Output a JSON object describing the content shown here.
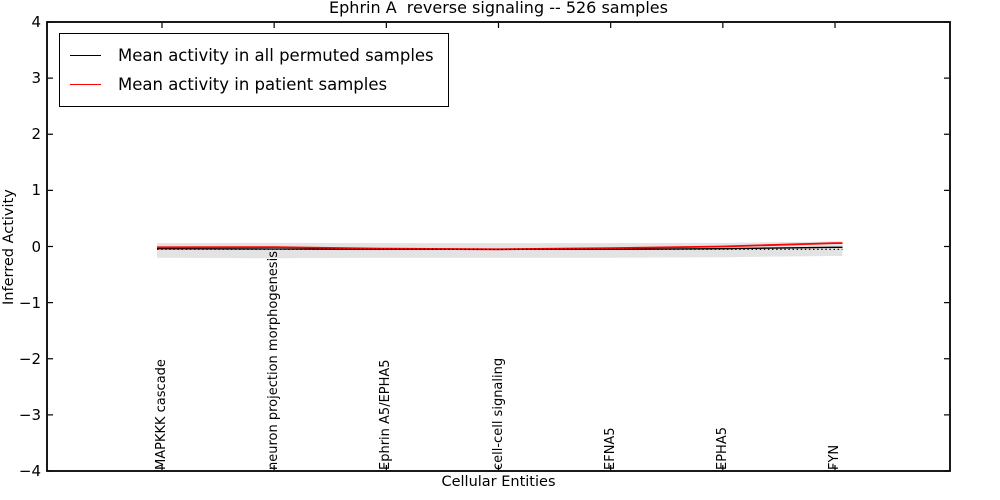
{
  "figure": {
    "title": "Ephrin A  reverse signaling -- 526 samples",
    "x_axis_label": "Cellular Entities",
    "y_axis_label": "Inferred Activity"
  },
  "legend": {
    "position": "upper left",
    "items": [
      {
        "label": "Mean activity in all permuted samples",
        "color": "#000000"
      },
      {
        "label": "Mean activity in patient samples",
        "color": "#ff0000"
      }
    ]
  },
  "chart_data": {
    "type": "line",
    "title": "Ephrin A  reverse signaling -- 526 samples",
    "xlabel": "Cellular Entities",
    "ylabel": "Inferred Activity",
    "ylim": [
      -4,
      4
    ],
    "grid": false,
    "legend_position": "upper left",
    "y_tick_values": [
      4,
      3,
      2,
      1,
      0,
      -1,
      -2,
      -3,
      -4
    ],
    "y_tick_labels": [
      "4",
      "3",
      "2",
      "1",
      "0",
      "−1",
      "−2",
      "−3",
      "−4"
    ],
    "categories": [
      "MAPKKK cascade",
      "neuron projection morphogenesis",
      "Ephrin A5/EPHA5",
      "cell-cell signaling",
      "EFNA5",
      "EPHA5",
      "FYN"
    ],
    "series": [
      {
        "name": "Mean activity in all permuted samples",
        "color": "#000000",
        "line_style": "solid",
        "line_width": 1.3,
        "values": [
          -0.04,
          -0.045,
          -0.05,
          -0.05,
          -0.05,
          -0.04,
          -0.015
        ]
      },
      {
        "name": "Mean activity in patient samples",
        "color": "#ff0000",
        "line_style": "solid",
        "line_width": 1.8,
        "values": [
          -0.015,
          -0.01,
          -0.04,
          -0.05,
          -0.03,
          0.0,
          0.06
        ]
      }
    ],
    "dotted_baseline": {
      "color": "#000000",
      "style": "dotted",
      "y": -0.05
    },
    "permuted_std_band": {
      "color": "#e3e3e3",
      "upper": [
        0.06,
        0.065,
        0.06,
        0.06,
        0.06,
        0.065,
        0.09
      ],
      "lower": [
        -0.2,
        -0.21,
        -0.2,
        -0.2,
        -0.2,
        -0.19,
        -0.17
      ]
    }
  },
  "colors": {
    "background": "#ffffff",
    "axis": "#000000",
    "band": "#e3e3e3",
    "accent_red": "#ff0000"
  }
}
